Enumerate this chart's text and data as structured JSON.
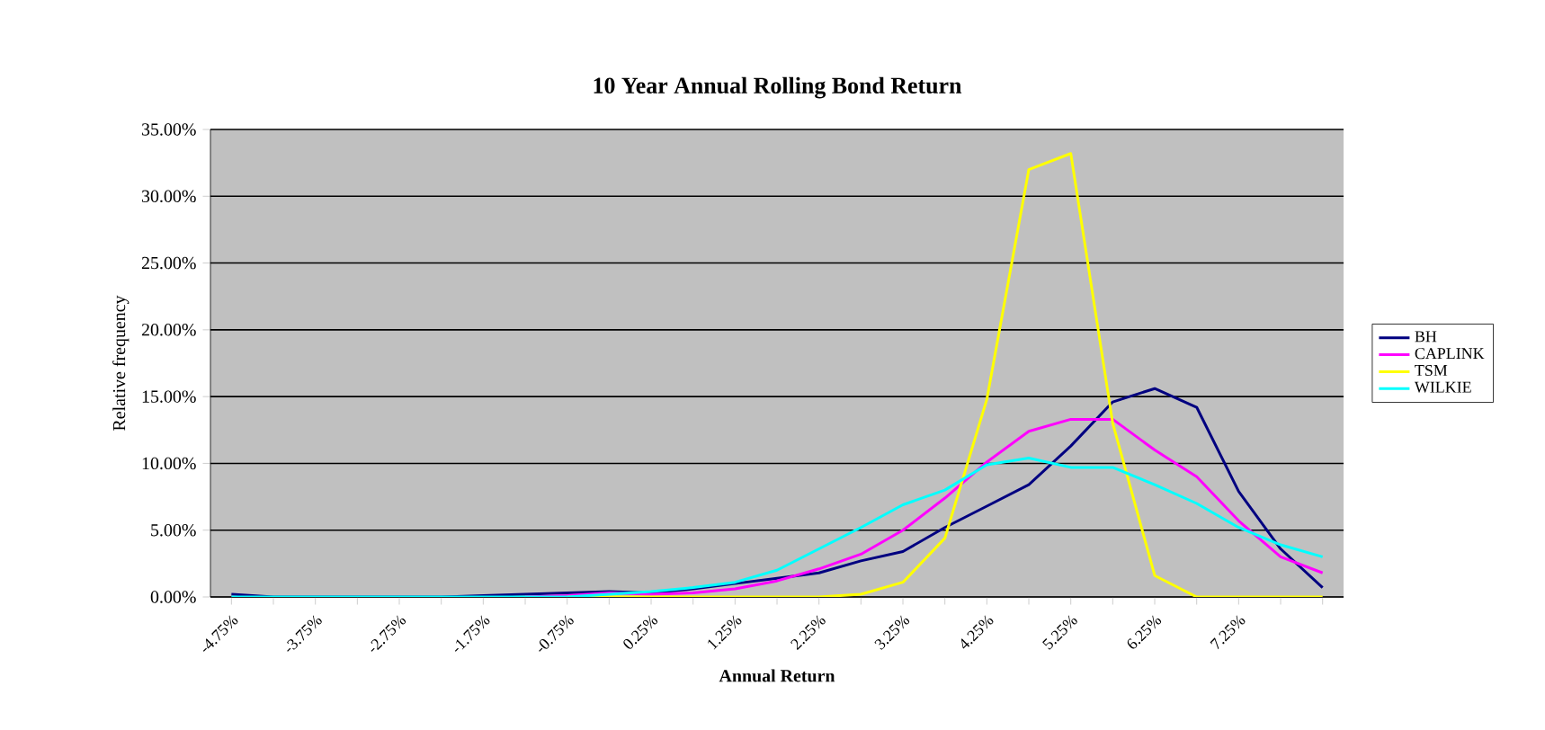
{
  "chart_data": {
    "type": "line",
    "title": "10 Year Annual Rolling Bond Return",
    "xlabel": "Annual Return",
    "ylabel": "Relative frequency",
    "categories": [
      "-4.75%",
      null,
      "-3.75%",
      null,
      "-2.75%",
      null,
      "-1.75%",
      null,
      "-0.75%",
      null,
      "0.25%",
      null,
      "1.25%",
      null,
      "2.25%",
      null,
      "3.25%",
      null,
      "4.25%",
      null,
      "5.25%",
      null,
      "6.25%",
      null,
      "7.25%",
      null,
      null
    ],
    "series": [
      {
        "name": "BH",
        "color": "#000080",
        "values": [
          0.2,
          0,
          0,
          0,
          0,
          0,
          0.1,
          0.2,
          0.3,
          0.4,
          0.3,
          0.6,
          1.0,
          1.4,
          1.8,
          2.7,
          3.4,
          5.2,
          6.8,
          8.4,
          11.3,
          14.6,
          15.6,
          14.2,
          7.9,
          3.6,
          0.7
        ]
      },
      {
        "name": "CAPLINK",
        "color": "#ff00ff",
        "values": [
          null,
          null,
          null,
          null,
          null,
          null,
          null,
          0,
          0.1,
          0.3,
          0.2,
          0.3,
          0.6,
          1.2,
          2.1,
          3.2,
          5.0,
          7.4,
          10.1,
          12.4,
          13.3,
          13.3,
          11.0,
          9.0,
          5.7,
          3.0,
          1.8
        ]
      },
      {
        "name": "TSM",
        "color": "#ffff00",
        "values": [
          null,
          null,
          null,
          null,
          null,
          null,
          null,
          null,
          0,
          0,
          0,
          0,
          0,
          0,
          0,
          0.2,
          1.1,
          4.4,
          14.8,
          32.0,
          33.2,
          13.0,
          1.6,
          0,
          0,
          0,
          0
        ]
      },
      {
        "name": "WILKIE",
        "color": "#00ffff",
        "values": [
          0,
          0,
          0,
          0,
          0,
          0,
          0,
          0,
          0,
          0.2,
          0.4,
          0.7,
          1.1,
          2.0,
          3.6,
          5.2,
          6.9,
          8.0,
          9.9,
          10.4,
          9.7,
          9.7,
          8.4,
          7.0,
          5.2,
          3.9,
          3.0
        ]
      }
    ],
    "ylim": [
      0,
      35
    ],
    "yticks": [
      {
        "value": 0,
        "label": "0.00%"
      },
      {
        "value": 5,
        "label": "5.00%"
      },
      {
        "value": 10,
        "label": "10.00%"
      },
      {
        "value": 15,
        "label": "15.00%"
      },
      {
        "value": 20,
        "label": "20.00%"
      },
      {
        "value": 25,
        "label": "25.00%"
      },
      {
        "value": 30,
        "label": "30.00%"
      },
      {
        "value": 35,
        "label": "35.00%"
      }
    ],
    "grid": "y",
    "legend": "right",
    "marker": "none",
    "line_style": "solid"
  }
}
